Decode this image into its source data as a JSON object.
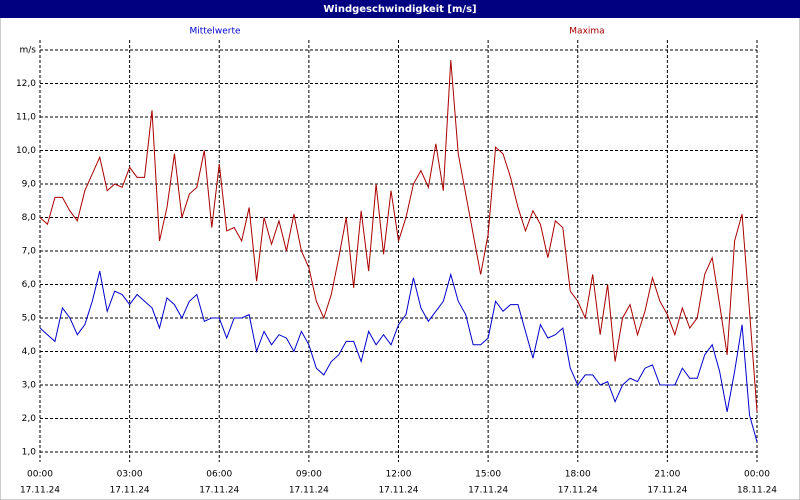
{
  "chart_data": {
    "type": "line",
    "title": "Windgeschwindigkeit [m/s]",
    "x": [
      0,
      0.25,
      0.5,
      0.75,
      1,
      1.25,
      1.5,
      1.75,
      2,
      2.25,
      2.5,
      2.75,
      3,
      3.25,
      3.5,
      3.75,
      4,
      4.25,
      4.5,
      4.75,
      5,
      5.25,
      5.5,
      5.75,
      6,
      6.25,
      6.5,
      6.75,
      7,
      7.25,
      7.5,
      7.75,
      8,
      8.25,
      8.5,
      8.75,
      9,
      9.25,
      9.5,
      9.75,
      10,
      10.25,
      10.5,
      10.75,
      11,
      11.25,
      11.5,
      11.75,
      12,
      12.25,
      12.5,
      12.75,
      13,
      13.25,
      13.5,
      13.75,
      14,
      14.25,
      14.5,
      14.75,
      15,
      15.25,
      15.5,
      15.75,
      16,
      16.25,
      16.5,
      16.75,
      17,
      17.25,
      17.5,
      17.75,
      18,
      18.25,
      18.5,
      18.75,
      19,
      19.25,
      19.5,
      19.75,
      20,
      20.25,
      20.5,
      20.75,
      21,
      21.25,
      21.5,
      21.75,
      22,
      22.25,
      22.5,
      22.75,
      23,
      23.25,
      23.5,
      23.75,
      24
    ],
    "series": [
      {
        "name": "Mittelwerte",
        "color": "#0000cc",
        "values": [
          4.7,
          4.5,
          4.3,
          5.3,
          5.0,
          4.5,
          4.8,
          5.5,
          6.4,
          5.2,
          5.8,
          5.7,
          5.4,
          5.7,
          5.5,
          5.3,
          4.7,
          5.6,
          5.4,
          5.0,
          5.5,
          5.7,
          4.9,
          5.0,
          5.0,
          4.4,
          5.0,
          5.0,
          5.1,
          4.0,
          4.6,
          4.2,
          4.5,
          4.4,
          4.0,
          4.6,
          4.2,
          3.5,
          3.3,
          3.7,
          3.9,
          4.3,
          4.3,
          3.7,
          4.6,
          4.2,
          4.5,
          4.2,
          4.8,
          5.1,
          6.2,
          5.3,
          4.9,
          5.2,
          5.5,
          6.3,
          5.5,
          5.1,
          4.2,
          4.2,
          4.4,
          5.5,
          5.2,
          5.4,
          5.4,
          4.6,
          3.8,
          4.8,
          4.4,
          4.5,
          4.7,
          3.5,
          3.0,
          3.3,
          3.3,
          3.0,
          3.1,
          2.5,
          3.0,
          3.2,
          3.1,
          3.5,
          3.6,
          3.0,
          3.0,
          3.0,
          3.5,
          3.2,
          3.2,
          3.9,
          4.2,
          3.4,
          2.2,
          3.4,
          4.8,
          2.1,
          1.3
        ]
      },
      {
        "name": "Maxima",
        "color": "#aa0000",
        "values": [
          8.0,
          7.8,
          8.6,
          8.6,
          8.2,
          7.9,
          8.8,
          9.3,
          9.8,
          8.8,
          9.0,
          8.9,
          9.5,
          9.2,
          9.2,
          11.2,
          7.3,
          8.3,
          9.9,
          8.0,
          8.7,
          8.9,
          10.0,
          7.7,
          9.6,
          7.6,
          7.7,
          7.3,
          8.3,
          6.1,
          8.0,
          7.2,
          7.9,
          7.0,
          8.1,
          7.0,
          6.5,
          5.5,
          5.0,
          5.7,
          6.8,
          8.0,
          5.9,
          8.2,
          6.4,
          9.0,
          6.9,
          8.8,
          7.3,
          8.0,
          9.0,
          9.4,
          8.9,
          10.2,
          8.8,
          12.7,
          9.9,
          8.7,
          7.5,
          6.3,
          7.5,
          10.1,
          9.9,
          9.2,
          8.3,
          7.6,
          8.2,
          7.8,
          6.8,
          7.9,
          7.7,
          5.8,
          5.5,
          5.0,
          6.3,
          4.5,
          6.0,
          3.7,
          5.0,
          5.4,
          4.5,
          5.2,
          6.2,
          5.5,
          5.1,
          4.5,
          5.3,
          4.7,
          5.0,
          6.3,
          6.8,
          5.4,
          3.9,
          7.3,
          8.1,
          5.2,
          2.2
        ]
      }
    ],
    "xlim": [
      0,
      24
    ],
    "xticks": [
      {
        "value": 0,
        "label": "00:00"
      },
      {
        "value": 3,
        "label": "03:00"
      },
      {
        "value": 6,
        "label": "06:00"
      },
      {
        "value": 9,
        "label": "09:00"
      },
      {
        "value": 12,
        "label": "12:00"
      },
      {
        "value": 15,
        "label": "15:00"
      },
      {
        "value": 18,
        "label": "18:00"
      },
      {
        "value": 21,
        "label": "21:00"
      },
      {
        "value": 24,
        "label": "00:00"
      }
    ],
    "xtick_dates": [
      "17.11.24",
      "17.11.24",
      "17.11.24",
      "17.11.24",
      "17.11.24",
      "17.11.24",
      "17.11.24",
      "17.11.24",
      "18.11.24"
    ],
    "ylim": [
      0.7,
      13.3
    ],
    "yticks": [
      {
        "value": 1,
        "label": "1,0"
      },
      {
        "value": 2,
        "label": "2,0"
      },
      {
        "value": 3,
        "label": "3,0"
      },
      {
        "value": 4,
        "label": "4,0"
      },
      {
        "value": 5,
        "label": "5,0"
      },
      {
        "value": 6,
        "label": "6,0"
      },
      {
        "value": 7,
        "label": "7,0"
      },
      {
        "value": 8,
        "label": "8,0"
      },
      {
        "value": 9,
        "label": "9,0"
      },
      {
        "value": 10,
        "label": "10,0"
      },
      {
        "value": 11,
        "label": "11,0"
      },
      {
        "value": 12,
        "label": "12,0"
      },
      {
        "value": 13,
        "label": "m/s"
      }
    ],
    "grid": true
  }
}
